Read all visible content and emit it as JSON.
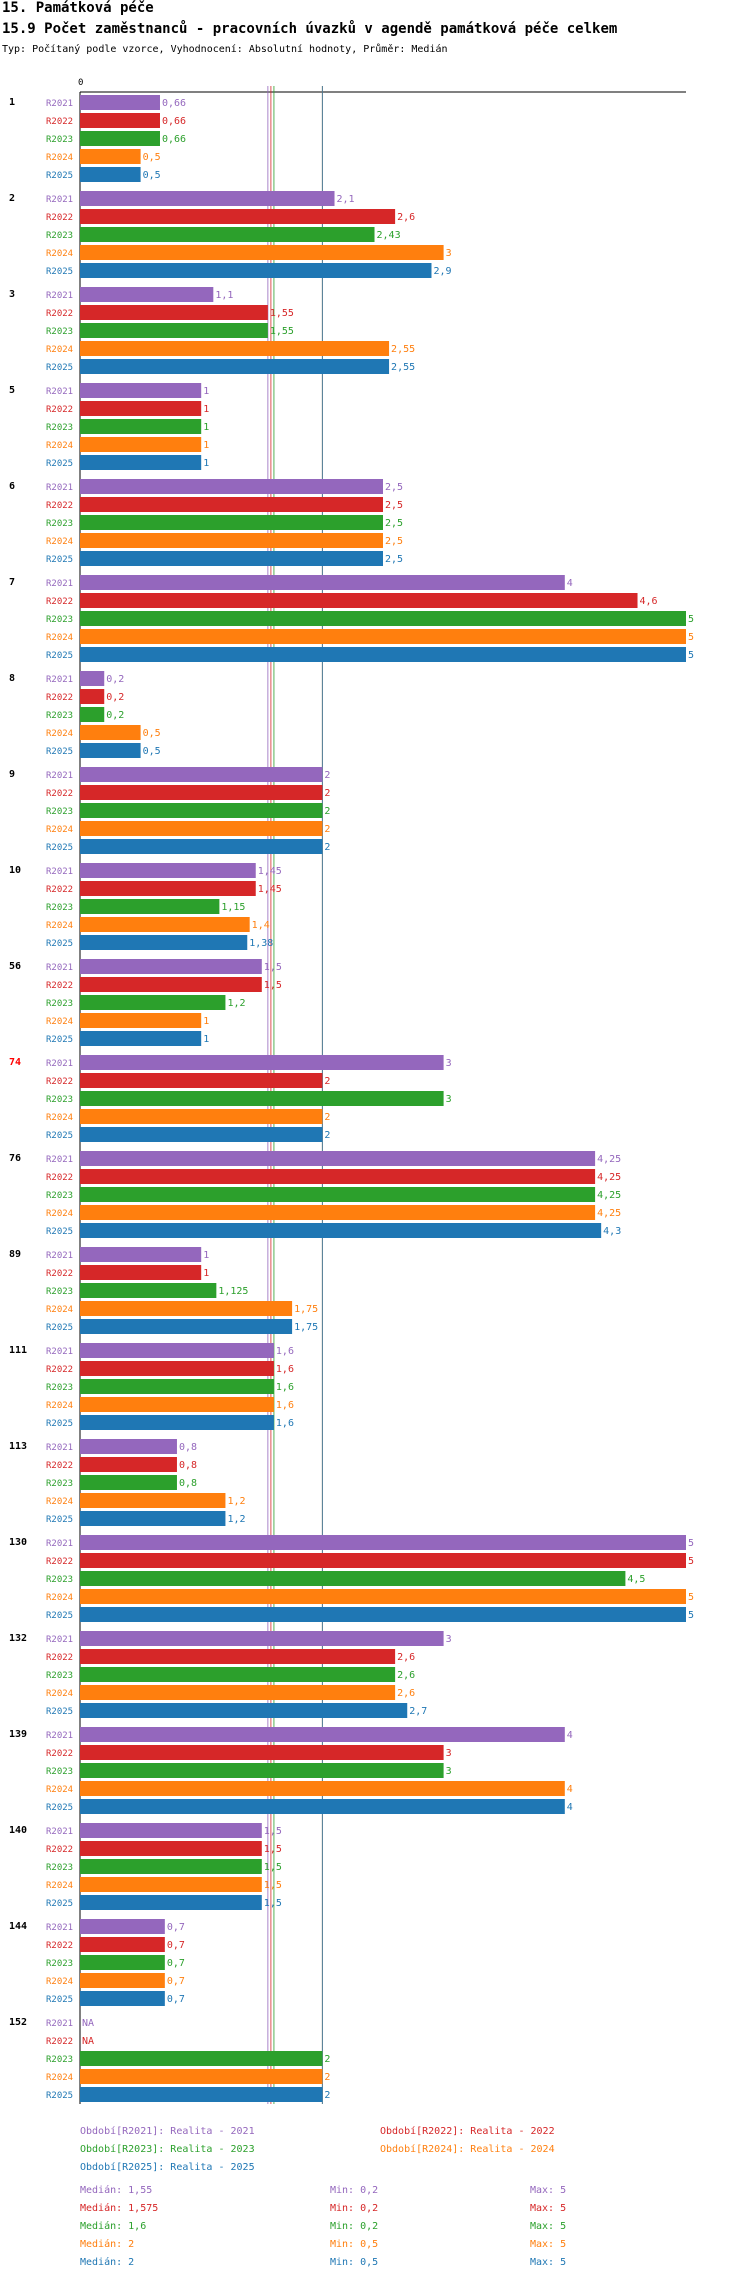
{
  "header": {
    "section_title": "15. Památková péče",
    "chart_title": "15.9 Počet zaměstnanců - pracovních úvazků v agendě památková péče celkem",
    "subtitle": "Typ: Počítaný podle vzorce, Vyhodnocení: Absolutní hodnoty, Průměr: Medián"
  },
  "chart_data": {
    "type": "bar",
    "orientation": "horizontal",
    "title": "15.9 Počet zaměstnanců - pracovních úvazků v agendě památková péče celkem",
    "xlim": [
      0,
      5
    ],
    "axis_zero_label": "0",
    "colors": {
      "R2021": "#9467bd",
      "R2022": "#d62728",
      "R2023": "#2ca02c",
      "R2024": "#ff7f0e",
      "R2025": "#1f77b4"
    },
    "highlight_color": "#ff0000",
    "series_names": [
      "R2021",
      "R2022",
      "R2023",
      "R2024",
      "R2025"
    ],
    "groups": [
      {
        "label": "1",
        "highlight": false,
        "values": [
          "0,66",
          "0,66",
          "0,66",
          "0,5",
          "0,5"
        ]
      },
      {
        "label": "2",
        "highlight": false,
        "values": [
          "2,1",
          "2,6",
          "2,43",
          "3",
          "2,9"
        ]
      },
      {
        "label": "3",
        "highlight": false,
        "values": [
          "1,1",
          "1,55",
          "1,55",
          "2,55",
          "2,55"
        ]
      },
      {
        "label": "5",
        "highlight": false,
        "values": [
          "1",
          "1",
          "1",
          "1",
          "1"
        ]
      },
      {
        "label": "6",
        "highlight": false,
        "values": [
          "2,5",
          "2,5",
          "2,5",
          "2,5",
          "2,5"
        ]
      },
      {
        "label": "7",
        "highlight": false,
        "values": [
          "4",
          "4,6",
          "5",
          "5",
          "5"
        ]
      },
      {
        "label": "8",
        "highlight": false,
        "values": [
          "0,2",
          "0,2",
          "0,2",
          "0,5",
          "0,5"
        ]
      },
      {
        "label": "9",
        "highlight": false,
        "values": [
          "2",
          "2",
          "2",
          "2",
          "2"
        ]
      },
      {
        "label": "10",
        "highlight": false,
        "values": [
          "1,45",
          "1,45",
          "1,15",
          "1,4",
          "1,38"
        ]
      },
      {
        "label": "56",
        "highlight": false,
        "values": [
          "1,5",
          "1,5",
          "1,2",
          "1",
          "1"
        ]
      },
      {
        "label": "74",
        "highlight": true,
        "values": [
          "3",
          "2",
          "3",
          "2",
          "2"
        ]
      },
      {
        "label": "76",
        "highlight": false,
        "values": [
          "4,25",
          "4,25",
          "4,25",
          "4,25",
          "4,3"
        ]
      },
      {
        "label": "89",
        "highlight": false,
        "values": [
          "1",
          "1",
          "1,125",
          "1,75",
          "1,75"
        ]
      },
      {
        "label": "111",
        "highlight": false,
        "values": [
          "1,6",
          "1,6",
          "1,6",
          "1,6",
          "1,6"
        ]
      },
      {
        "label": "113",
        "highlight": false,
        "values": [
          "0,8",
          "0,8",
          "0,8",
          "1,2",
          "1,2"
        ]
      },
      {
        "label": "130",
        "highlight": false,
        "values": [
          "5",
          "5",
          "4,5",
          "5",
          "5"
        ]
      },
      {
        "label": "132",
        "highlight": false,
        "values": [
          "3",
          "2,6",
          "2,6",
          "2,6",
          "2,7"
        ]
      },
      {
        "label": "139",
        "highlight": false,
        "values": [
          "4",
          "3",
          "3",
          "4",
          "4"
        ]
      },
      {
        "label": "140",
        "highlight": false,
        "values": [
          "1,5",
          "1,5",
          "1,5",
          "1,5",
          "1,5"
        ]
      },
      {
        "label": "144",
        "highlight": false,
        "values": [
          "0,7",
          "0,7",
          "0,7",
          "0,7",
          "0,7"
        ]
      },
      {
        "label": "152",
        "highlight": false,
        "values": [
          "NA",
          "NA",
          "2",
          "2",
          "2"
        ]
      }
    ],
    "median_lines": [
      1.55,
      1.575,
      1.6,
      2,
      2
    ],
    "legend": [
      {
        "series": "R2021",
        "label": "Období[R2021]: Realita - 2021"
      },
      {
        "series": "R2022",
        "label": "Období[R2022]: Realita - 2022"
      },
      {
        "series": "R2023",
        "label": "Období[R2023]: Realita - 2023"
      },
      {
        "series": "R2024",
        "label": "Období[R2024]: Realita - 2024"
      },
      {
        "series": "R2025",
        "label": "Období[R2025]: Realita - 2025"
      }
    ],
    "stats": [
      {
        "series": "R2021",
        "median": "Medián: 1,55",
        "min": "Min: 0,2",
        "max": "Max: 5"
      },
      {
        "series": "R2022",
        "median": "Medián: 1,575",
        "min": "Min: 0,2",
        "max": "Max: 5"
      },
      {
        "series": "R2023",
        "median": "Medián: 1,6",
        "min": "Min: 0,2",
        "max": "Max: 5"
      },
      {
        "series": "R2024",
        "median": "Medián: 2",
        "min": "Min: 0,5",
        "max": "Max: 5"
      },
      {
        "series": "R2025",
        "median": "Medián: 2",
        "min": "Min: 0,5",
        "max": "Max: 5"
      }
    ]
  }
}
